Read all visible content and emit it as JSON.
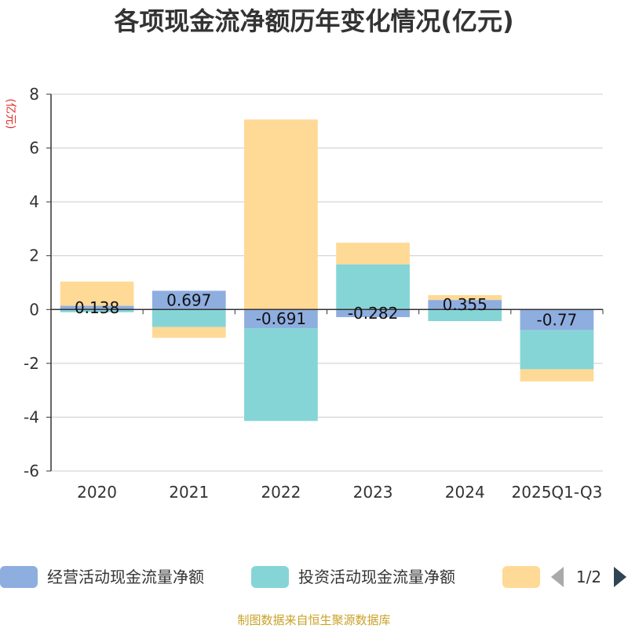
{
  "chart_data": {
    "type": "bar",
    "stacked": true,
    "title": "各项现金流净额历年变化情况(亿元)",
    "ylabel": "(亿元)",
    "ylim": [
      -6,
      8
    ],
    "yticks": [
      -6,
      -4,
      -2,
      0,
      2,
      4,
      6,
      8
    ],
    "categories": [
      "2020",
      "2021",
      "2022",
      "2023",
      "2024",
      "2025Q1-Q3"
    ],
    "series": [
      {
        "name": "经营活动现金流量净额",
        "color": "#8eaee0",
        "values": [
          0.138,
          0.697,
          -0.691,
          -0.282,
          0.355,
          -0.77
        ]
      },
      {
        "name": "投资活动现金流量净额",
        "color": "#86d5d6",
        "values": [
          -0.1,
          -0.65,
          -3.45,
          1.68,
          -0.43,
          -1.45
        ]
      },
      {
        "name": "",
        "color": "#ffd996",
        "values": [
          0.9,
          -0.4,
          7.06,
          0.8,
          0.18,
          -0.45
        ]
      }
    ],
    "data_labels": [
      "0.138",
      "0.697",
      "-0.691",
      "-0.282",
      "0.355",
      "-0.77"
    ],
    "legend": {
      "position": "bottom",
      "page": "1/2"
    },
    "source": "制图数据来自恒生聚源数据库"
  }
}
